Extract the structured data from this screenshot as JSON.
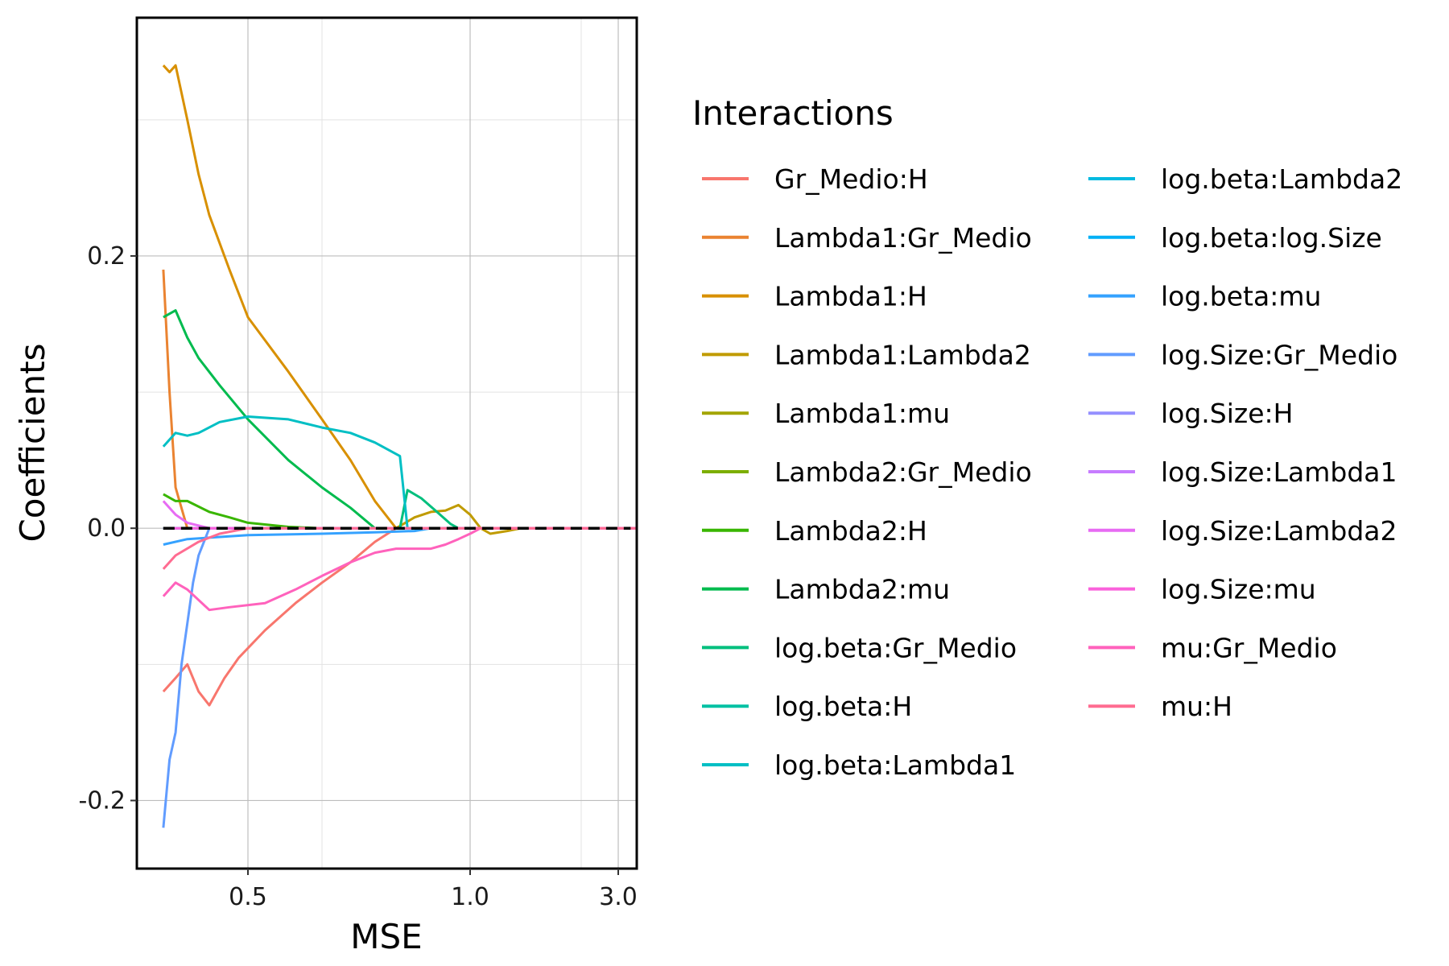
{
  "chart_data": {
    "type": "line",
    "title": "",
    "xlabel": "MSE",
    "ylabel": "Coefficients",
    "x_scale": "reciprocal",
    "xlim": [
      0.4,
      4.0
    ],
    "ylim": [
      -0.25,
      0.375
    ],
    "x_ticks": [
      0.5,
      1.0,
      3.0
    ],
    "x_tick_labels": [
      "0.5",
      "1.0",
      "3.0"
    ],
    "y_ticks": [
      -0.2,
      0.0,
      0.2
    ],
    "y_tick_labels": [
      "-0.2",
      "0.0",
      "0.2"
    ],
    "grid": true,
    "reference_line": {
      "y": 0,
      "style": "dashed",
      "color": "#000000"
    },
    "legend": {
      "title": "Interactions",
      "position": "right",
      "columns": 2
    },
    "series": [
      {
        "name": "Gr_Medio:H",
        "color": "#F8766D",
        "points": [
          [
            0.42,
            -0.12
          ],
          [
            0.43,
            -0.11
          ],
          [
            0.44,
            -0.1
          ],
          [
            0.45,
            -0.12
          ],
          [
            0.46,
            -0.13
          ],
          [
            0.475,
            -0.11
          ],
          [
            0.49,
            -0.095
          ],
          [
            0.52,
            -0.075
          ],
          [
            0.56,
            -0.055
          ],
          [
            0.6,
            -0.04
          ],
          [
            0.65,
            -0.025
          ],
          [
            0.7,
            -0.01
          ],
          [
            0.75,
            0.0
          ],
          [
            4.0,
            0.0
          ]
        ]
      },
      {
        "name": "Lambda1:Gr_Medio",
        "color": "#EA8331",
        "points": [
          [
            0.42,
            0.19
          ],
          [
            0.425,
            0.1
          ],
          [
            0.43,
            0.03
          ],
          [
            0.44,
            0.0
          ],
          [
            4.0,
            0.0
          ]
        ]
      },
      {
        "name": "Lambda1:H",
        "color": "#D89000",
        "points": [
          [
            0.42,
            0.34
          ],
          [
            0.425,
            0.335
          ],
          [
            0.43,
            0.34
          ],
          [
            0.44,
            0.3
          ],
          [
            0.45,
            0.26
          ],
          [
            0.46,
            0.23
          ],
          [
            0.48,
            0.19
          ],
          [
            0.5,
            0.155
          ],
          [
            0.55,
            0.115
          ],
          [
            0.6,
            0.08
          ],
          [
            0.65,
            0.05
          ],
          [
            0.7,
            0.02
          ],
          [
            0.75,
            0.0
          ],
          [
            4.0,
            0.0
          ]
        ]
      },
      {
        "name": "Lambda1:Lambda2",
        "color": "#C09B00",
        "points": [
          [
            0.42,
            0.0
          ],
          [
            0.75,
            0.0
          ],
          [
            0.8,
            0.008
          ],
          [
            0.85,
            0.012
          ],
          [
            0.9,
            0.013
          ],
          [
            0.95,
            0.017
          ],
          [
            1.0,
            0.01
          ],
          [
            1.05,
            0.0
          ],
          [
            1.1,
            -0.004
          ],
          [
            1.2,
            -0.002
          ],
          [
            1.3,
            0.0
          ],
          [
            4.0,
            0.0
          ]
        ]
      },
      {
        "name": "Lambda1:mu",
        "color": "#A3A500",
        "points": [
          [
            0.42,
            0.0
          ],
          [
            4.0,
            0.0
          ]
        ]
      },
      {
        "name": "Lambda2:Gr_Medio",
        "color": "#7CAE00",
        "points": [
          [
            0.42,
            0.0
          ],
          [
            4.0,
            0.0
          ]
        ]
      },
      {
        "name": "Lambda2:H",
        "color": "#39B600",
        "points": [
          [
            0.42,
            0.025
          ],
          [
            0.43,
            0.02
          ],
          [
            0.44,
            0.02
          ],
          [
            0.46,
            0.012
          ],
          [
            0.48,
            0.008
          ],
          [
            0.5,
            0.004
          ],
          [
            0.55,
            0.001
          ],
          [
            0.6,
            0.0
          ],
          [
            4.0,
            0.0
          ]
        ]
      },
      {
        "name": "Lambda2:mu",
        "color": "#00BB4E",
        "points": [
          [
            0.42,
            0.155
          ],
          [
            0.43,
            0.16
          ],
          [
            0.44,
            0.14
          ],
          [
            0.45,
            0.125
          ],
          [
            0.47,
            0.105
          ],
          [
            0.5,
            0.08
          ],
          [
            0.55,
            0.05
          ],
          [
            0.6,
            0.03
          ],
          [
            0.65,
            0.015
          ],
          [
            0.7,
            0.0
          ],
          [
            4.0,
            0.0
          ]
        ]
      },
      {
        "name": "log.beta:Gr_Medio",
        "color": "#00BF7D",
        "points": [
          [
            0.42,
            0.0
          ],
          [
            0.76,
            0.0
          ],
          [
            0.78,
            0.028
          ],
          [
            0.82,
            0.022
          ],
          [
            0.87,
            0.012
          ],
          [
            0.92,
            0.003
          ],
          [
            0.95,
            0.0
          ],
          [
            4.0,
            0.0
          ]
        ]
      },
      {
        "name": "log.beta:H",
        "color": "#00C1A3",
        "points": [
          [
            0.42,
            0.0
          ],
          [
            4.0,
            0.0
          ]
        ]
      },
      {
        "name": "log.beta:Lambda1",
        "color": "#00BFC4",
        "points": [
          [
            0.42,
            0.06
          ],
          [
            0.43,
            0.07
          ],
          [
            0.44,
            0.068
          ],
          [
            0.45,
            0.07
          ],
          [
            0.47,
            0.078
          ],
          [
            0.5,
            0.082
          ],
          [
            0.55,
            0.08
          ],
          [
            0.6,
            0.074
          ],
          [
            0.65,
            0.07
          ],
          [
            0.7,
            0.063
          ],
          [
            0.76,
            0.053
          ],
          [
            0.78,
            0.0
          ],
          [
            4.0,
            0.0
          ]
        ]
      },
      {
        "name": "log.beta:Lambda2",
        "color": "#00BAE0",
        "points": [
          [
            0.42,
            0.0
          ],
          [
            4.0,
            0.0
          ]
        ]
      },
      {
        "name": "log.beta:log.Size",
        "color": "#00B0F6",
        "points": [
          [
            0.42,
            0.0
          ],
          [
            4.0,
            0.0
          ]
        ]
      },
      {
        "name": "log.beta:mu",
        "color": "#35A2FF",
        "points": [
          [
            0.42,
            -0.012
          ],
          [
            0.44,
            -0.008
          ],
          [
            0.5,
            -0.005
          ],
          [
            0.6,
            -0.004
          ],
          [
            0.7,
            -0.003
          ],
          [
            0.8,
            -0.002
          ],
          [
            0.85,
            0.0
          ],
          [
            4.0,
            0.0
          ]
        ]
      },
      {
        "name": "log.Size:Gr_Medio",
        "color": "#619CFF",
        "points": [
          [
            0.42,
            -0.22
          ],
          [
            0.425,
            -0.17
          ],
          [
            0.43,
            -0.15
          ],
          [
            0.435,
            -0.1
          ],
          [
            0.44,
            -0.07
          ],
          [
            0.445,
            -0.04
          ],
          [
            0.45,
            -0.02
          ],
          [
            0.46,
            0.0
          ],
          [
            4.0,
            0.0
          ]
        ]
      },
      {
        "name": "log.Size:H",
        "color": "#9590FF",
        "points": [
          [
            0.42,
            0.0
          ],
          [
            4.0,
            0.0
          ]
        ]
      },
      {
        "name": "log.Size:Lambda1",
        "color": "#C77CFF",
        "points": [
          [
            0.42,
            0.0
          ],
          [
            4.0,
            0.0
          ]
        ]
      },
      {
        "name": "log.Size:Lambda2",
        "color": "#E76BF3",
        "points": [
          [
            0.42,
            0.02
          ],
          [
            0.43,
            0.01
          ],
          [
            0.44,
            0.004
          ],
          [
            0.46,
            0.0
          ],
          [
            4.0,
            0.0
          ]
        ]
      },
      {
        "name": "log.Size:mu",
        "color": "#FA62DB",
        "points": [
          [
            0.42,
            0.0
          ],
          [
            4.0,
            0.0
          ]
        ]
      },
      {
        "name": "mu:Gr_Medio",
        "color": "#FF62BC",
        "points": [
          [
            0.42,
            -0.05
          ],
          [
            0.43,
            -0.04
          ],
          [
            0.44,
            -0.045
          ],
          [
            0.46,
            -0.06
          ],
          [
            0.48,
            -0.058
          ],
          [
            0.52,
            -0.055
          ],
          [
            0.56,
            -0.045
          ],
          [
            0.6,
            -0.035
          ],
          [
            0.65,
            -0.025
          ],
          [
            0.7,
            -0.018
          ],
          [
            0.75,
            -0.015
          ],
          [
            0.85,
            -0.015
          ],
          [
            0.9,
            -0.012
          ],
          [
            0.95,
            -0.008
          ],
          [
            1.0,
            -0.004
          ],
          [
            1.05,
            0.0
          ],
          [
            4.0,
            0.0
          ]
        ]
      },
      {
        "name": "mu:H",
        "color": "#FF6C91",
        "points": [
          [
            0.42,
            -0.03
          ],
          [
            0.43,
            -0.02
          ],
          [
            0.45,
            -0.01
          ],
          [
            0.47,
            -0.004
          ],
          [
            0.5,
            0.0
          ],
          [
            4.0,
            0.0
          ]
        ]
      }
    ]
  }
}
